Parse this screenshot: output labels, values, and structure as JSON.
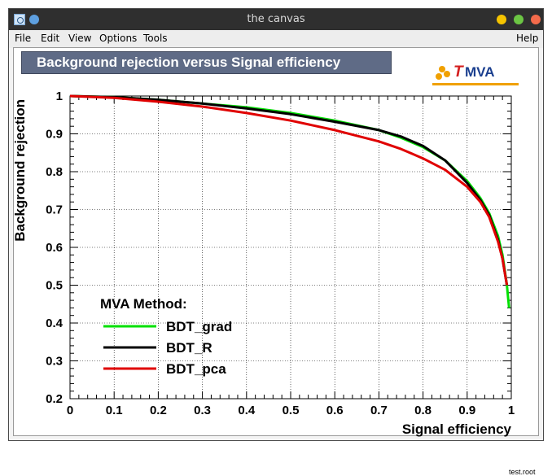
{
  "window": {
    "title": "the canvas"
  },
  "menu": {
    "file": "File",
    "edit": "Edit",
    "view": "View",
    "options": "Options",
    "tools": "Tools",
    "help": "Help"
  },
  "logo": {
    "t": "T",
    "mva": "MVA"
  },
  "footer": {
    "filename": "test.root"
  },
  "chart_data": {
    "type": "line",
    "title": "Background rejection versus Signal efficiency",
    "xlabel": "Signal efficiency",
    "ylabel": "Background rejection",
    "xlim": [
      0,
      1
    ],
    "ylim": [
      0.2,
      1
    ],
    "xticks": [
      0,
      0.1,
      0.2,
      0.3,
      0.4,
      0.5,
      0.6,
      0.7,
      0.8,
      0.9,
      1
    ],
    "xtick_labels": [
      "0",
      "0.1",
      "0.2",
      "0.3",
      "0.4",
      "0.5",
      "0.6",
      "0.7",
      "0.8",
      "0.9",
      "1"
    ],
    "yticks": [
      0.2,
      0.3,
      0.4,
      0.5,
      0.6,
      0.7,
      0.8,
      0.9,
      1
    ],
    "ytick_labels": [
      "0.2",
      "0.3",
      "0.4",
      "0.5",
      "0.6",
      "0.7",
      "0.8",
      "0.9",
      "1"
    ],
    "grid": true,
    "legend": {
      "title": "MVA Method:",
      "position": "bottom-left"
    },
    "series": [
      {
        "name": "BDT_grad",
        "color": "#00e000",
        "x": [
          0,
          0.1,
          0.2,
          0.3,
          0.4,
          0.5,
          0.6,
          0.7,
          0.75,
          0.8,
          0.85,
          0.9,
          0.93,
          0.95,
          0.97,
          0.98,
          0.99,
          0.995
        ],
        "y": [
          1,
          0.997,
          0.99,
          0.98,
          0.97,
          0.955,
          0.935,
          0.91,
          0.89,
          0.865,
          0.83,
          0.775,
          0.73,
          0.69,
          0.63,
          0.58,
          0.5,
          0.44
        ]
      },
      {
        "name": "BDT_R",
        "color": "#000000",
        "x": [
          0,
          0.1,
          0.2,
          0.3,
          0.4,
          0.5,
          0.6,
          0.7,
          0.75,
          0.8,
          0.85,
          0.9,
          0.93,
          0.95,
          0.97,
          0.98,
          0.99
        ],
        "y": [
          1,
          0.997,
          0.99,
          0.98,
          0.967,
          0.952,
          0.932,
          0.91,
          0.893,
          0.868,
          0.83,
          0.77,
          0.725,
          0.685,
          0.62,
          0.57,
          0.5
        ]
      },
      {
        "name": "BDT_pca",
        "color": "#e00000",
        "x": [
          0,
          0.1,
          0.2,
          0.3,
          0.4,
          0.5,
          0.6,
          0.7,
          0.75,
          0.8,
          0.85,
          0.9,
          0.93,
          0.95,
          0.97,
          0.98,
          0.99
        ],
        "y": [
          1,
          0.995,
          0.985,
          0.972,
          0.955,
          0.935,
          0.91,
          0.88,
          0.86,
          0.835,
          0.805,
          0.76,
          0.72,
          0.68,
          0.615,
          0.57,
          0.5
        ]
      }
    ]
  }
}
